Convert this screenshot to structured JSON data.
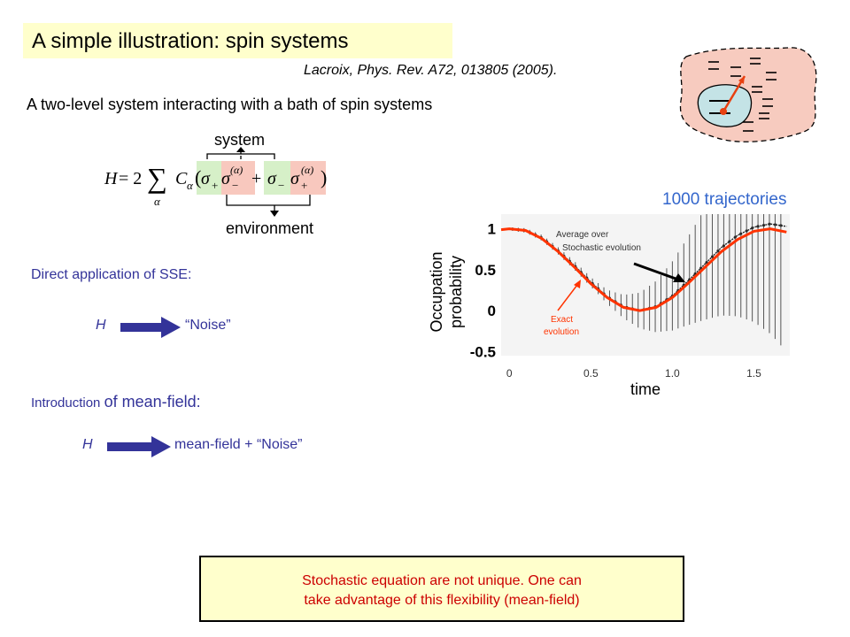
{
  "slide": {
    "title": "A simple illustration: spin systems",
    "reference": "Lacroix, Phys. Rev. A72, 013805 (2005).",
    "subtitle": "A two-level system interacting with a bath of spin systems"
  },
  "equation": {
    "label_system": "system",
    "label_environment": "environment",
    "lhs": "H",
    "equals": "= 2",
    "sum_symbol": "∑",
    "sum_index": "α",
    "coefficient": "C",
    "coefficient_index": "α",
    "sigma": "σ",
    "plus": "+",
    "minus": "−",
    "superscript": "(α)",
    "open_paren": "(",
    "close_paren": ")"
  },
  "sections": {
    "direct": {
      "label": "Direct application of SSE:",
      "lhs": "H",
      "rhs": "“Noise”"
    },
    "mean_field": {
      "label_part1": "Introduction ",
      "label_part2": "of mean-field:",
      "lhs": "H",
      "rhs": "mean-field + “Noise”"
    }
  },
  "conclusion": {
    "line1": "Stochastic equation are not unique. One can",
    "line2": "take advantage of this flexibility (mean-field)"
  },
  "colors": {
    "title_bg": "#ffffcc",
    "blue_text": "#333399",
    "arrow_blue": "#333399",
    "exact_curve": "#ff3300",
    "bath_fill": "#f7cbbf",
    "system_fill": "#c4e3e6",
    "highlight_green": "#d6f0c8",
    "highlight_red": "#f8c8be",
    "trajectory_title": "#3366cc",
    "conclusion_text": "#cc0000"
  },
  "chart_data": {
    "type": "line",
    "title": "1000 trajectories",
    "xlabel": "time",
    "ylabel_line1": "Occupation",
    "ylabel_line2": "probability",
    "xlim": [
      -0.05,
      1.72
    ],
    "ylim": [
      -0.55,
      1.18
    ],
    "x_ticks": [
      "0",
      "0.5",
      "1.0",
      "1.5"
    ],
    "x_tick_values": [
      0,
      0.5,
      1.0,
      1.5
    ],
    "y_ticks": [
      "1",
      "0.5",
      "0",
      "-0.5"
    ],
    "y_tick_values": [
      1,
      0.5,
      0,
      -0.5
    ],
    "grid": false,
    "annotations": [
      {
        "text_line1": "Average over",
        "text_line2": "Stochastic evolution"
      },
      {
        "text_line1": "Exact",
        "text_line2": "evolution"
      }
    ],
    "series": [
      {
        "name": "Exact evolution",
        "x": [
          -0.05,
          0.0,
          0.1,
          0.2,
          0.3,
          0.4,
          0.5,
          0.6,
          0.7,
          0.8,
          0.9,
          1.0,
          1.1,
          1.2,
          1.3,
          1.4,
          1.5,
          1.6,
          1.7
        ],
        "y": [
          0.99,
          1.0,
          0.98,
          0.88,
          0.72,
          0.53,
          0.33,
          0.16,
          0.04,
          0.0,
          0.04,
          0.16,
          0.34,
          0.53,
          0.72,
          0.87,
          0.97,
          1.0,
          0.96
        ]
      },
      {
        "name": "Average over Stochastic evolution",
        "x": [
          0.0,
          0.1,
          0.2,
          0.3,
          0.4,
          0.5,
          0.6,
          0.7,
          0.8,
          0.9,
          1.0,
          1.1,
          1.2,
          1.3,
          1.4,
          1.5,
          1.6,
          1.7
        ],
        "y": [
          1.0,
          0.98,
          0.89,
          0.73,
          0.55,
          0.35,
          0.17,
          0.05,
          0.0,
          0.05,
          0.18,
          0.37,
          0.57,
          0.77,
          0.92,
          1.02,
          1.06,
          1.03
        ]
      }
    ]
  }
}
